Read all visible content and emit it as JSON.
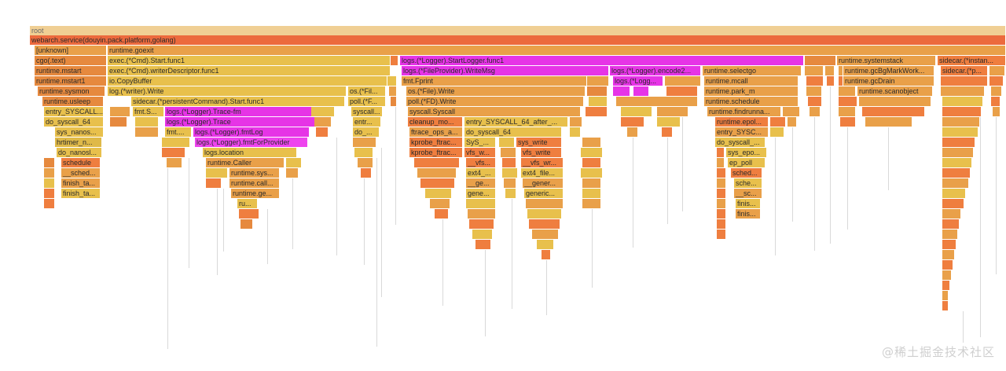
{
  "watermark": "@稀土掘金技术社区",
  "colors": {
    "root": "#f0cf94",
    "top": "#ec6a3d",
    "orange": "#e9a049",
    "orange_dark": "#e6893e",
    "orange_red": "#ef7e3f",
    "yellow": "#e8c04c",
    "magenta": "#e634e6"
  },
  "frames": {
    "root": "root",
    "service": "webarch.service(douyin.pack.platform,golang)",
    "unknown": "[unknown]",
    "goexit": "runtime.goexit",
    "cgo_text": "cgo(.text)",
    "cmd_start_func1": "exec.(*Cmd).Start.func1",
    "startlogger_func1": "logs.(*Logger).StartLogger.func1",
    "systemstack": "runtime.systemstack",
    "sidecar_instance": "sidecar.(*instan...",
    "mstart": "runtime.mstart",
    "writer_descriptor_func1": "exec.(*Cmd).writerDescriptor.func1",
    "fileprovider_writemsg": "logs.(*FileProvider).WriteMsg",
    "logger_encode2": "logs.(*Logger).encode2...",
    "selectgo": "runtime.selectgo",
    "gcbgmarkworker": "runtime.gcBgMarkWork...",
    "sidecar_p": "sidecar.(*p...",
    "mstart1": "runtime.mstart1",
    "io_copybuffer": "io.CopyBuffer",
    "fmt_fprint": "fmt.Fprint",
    "logger_short": "logs.(*Logg...",
    "mcall": "runtime.mcall",
    "gcdrain": "runtime.gcDrain",
    "sysmon": "runtime.sysmon",
    "log_writer_write": "log.(*writer).Write",
    "os_file_short": "os.(*Fil...",
    "os_file_write": "os.(*File).Write",
    "park_m": "runtime.park_m",
    "scanobject": "runtime.scanobject",
    "usleep": "runtime.usleep",
    "persistent_command": "sidecar.(*persistentCommand).Start.func1",
    "poll_f_short": "poll.(*F...",
    "poll_fd_write": "poll.(*FD).Write",
    "schedule": "runtime.schedule",
    "entry_syscall": "entry_SYSCALL...",
    "fmt_s": "fmt.S...",
    "trace_fm": "logs.(*Logger).Trace-fm",
    "syscall_short": "syscall...",
    "syscall_syscall": "syscall.Syscall",
    "findrunnable": "runtime.findrunna...",
    "do_syscall_64": "do_syscall_64",
    "logger_trace": "logs.(*Logger).Trace",
    "entr_short": "entr...",
    "cleanup_mo": "cleanup_mo...",
    "entry_syscall_64_after": "entry_SYSCALL_64_after_...",
    "runtime_epol": "runtime.epol...",
    "sys_nanos": "sys_nanos...",
    "fmt_short": "fmt....",
    "fmtlog": "logs.(*Logger).fmtLog",
    "do_short": "do_...",
    "ftrace_ops_a": "ftrace_ops_a...",
    "do_syscall_64_b": "do_syscall_64",
    "entry_sysc": "entry_SYSC...",
    "hrtimer_n": "hrtimer_n...",
    "fmtforprovider": "logs.(*Logger).fmtForProvider",
    "kprobe_ftrac": "kprobe_ftrac...",
    "sys_short": "SyS_...",
    "sys_write": "sys_write",
    "do_syscall_short": "do_syscall_...",
    "do_nanosl": "do_nanosl...",
    "logs_location": "logs.location",
    "kprobe_ftrac2": "kprobe_ftrac...",
    "vfs_w": "vfs_w...",
    "vfs_write": "vfs_write",
    "sys_epo": "sys_epo...",
    "schedule_k": "schedule",
    "runtime_caller": "runtime.Caller",
    "vfs_sub": "__vfs...",
    "vfs_write_sub": "__vfs_wr...",
    "ep_poll": "ep_poll",
    "sched_sub": "__sched...",
    "runtime_sys": "runtime.sys...",
    "ext4_short": "ext4_...",
    "ext4_file": "ext4_file...",
    "sched_e": "sched...",
    "finish_ta": "finish_ta...",
    "runtime_call": "runtime.call...",
    "ge_sub": "__ge...",
    "gener_sub": "__gener...",
    "sche": "sche...",
    "finish_ta2": "finish_ta...",
    "runtime_ge": "runtime.ge...",
    "gene": "gene...",
    "generic": "generic...",
    "sc_sub": "__sc...",
    "ru": "ru...",
    "finis": "finis...",
    "finis2": "finis..."
  }
}
